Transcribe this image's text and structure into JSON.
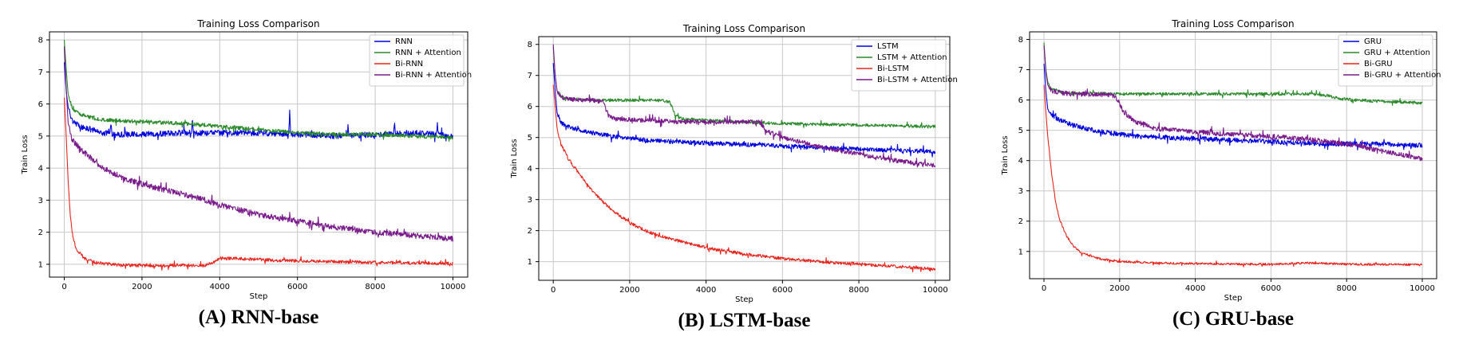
{
  "chart_data": [
    {
      "type": "line",
      "title": "Training Loss Comparison",
      "caption": "(A) RNN-base",
      "xlabel": "Step",
      "ylabel": "Train Loss",
      "xlim": [
        -380,
        10380
      ],
      "ylim": [
        0.6,
        8.25
      ],
      "xticks": [
        0,
        2000,
        4000,
        6000,
        8000,
        10000
      ],
      "yticks": [
        1,
        2,
        3,
        4,
        5,
        6,
        7,
        8
      ],
      "grid": true,
      "legend_position": "top-right",
      "series": [
        {
          "name": "RNN",
          "color": "#0000dd",
          "points": [
            [
              0,
              7.3
            ],
            [
              50,
              6.4
            ],
            [
              100,
              5.9
            ],
            [
              200,
              5.5
            ],
            [
              400,
              5.3
            ],
            [
              700,
              5.2
            ],
            [
              1000,
              5.1
            ],
            [
              1500,
              5.05
            ],
            [
              2000,
              5.05
            ],
            [
              3000,
              5.1
            ],
            [
              4000,
              5.1
            ],
            [
              5000,
              5.1
            ],
            [
              6000,
              5.05
            ],
            [
              7000,
              5.0
            ],
            [
              8000,
              5.05
            ],
            [
              9000,
              5.1
            ],
            [
              10000,
              5.0
            ]
          ],
          "noise": 0.09,
          "spikes": [
            [
              1200,
              0.35
            ],
            [
              3300,
              0.45
            ],
            [
              5800,
              0.7
            ],
            [
              7300,
              0.3
            ],
            [
              8500,
              0.35
            ],
            [
              9600,
              0.3
            ]
          ]
        },
        {
          "name": "RNN + Attention",
          "color": "#2a8a2a",
          "points": [
            [
              0,
              8.0
            ],
            [
              50,
              7.1
            ],
            [
              100,
              6.3
            ],
            [
              200,
              5.9
            ],
            [
              300,
              5.75
            ],
            [
              600,
              5.6
            ],
            [
              1000,
              5.5
            ],
            [
              2000,
              5.45
            ],
            [
              3000,
              5.4
            ],
            [
              4000,
              5.3
            ],
            [
              5000,
              5.2
            ],
            [
              6000,
              5.1
            ],
            [
              7000,
              5.05
            ],
            [
              8000,
              5.05
            ],
            [
              9000,
              5.0
            ],
            [
              10000,
              4.95
            ]
          ],
          "noise": 0.06
        },
        {
          "name": "Bi-RNN",
          "color": "#e8231b",
          "points": [
            [
              0,
              6.2
            ],
            [
              50,
              5.0
            ],
            [
              100,
              3.6
            ],
            [
              150,
              2.6
            ],
            [
              200,
              2.0
            ],
            [
              300,
              1.5
            ],
            [
              500,
              1.2
            ],
            [
              800,
              1.05
            ],
            [
              1500,
              0.97
            ],
            [
              2500,
              0.95
            ],
            [
              3000,
              0.98
            ],
            [
              3600,
              0.95
            ],
            [
              3800,
              1.05
            ],
            [
              4000,
              1.18
            ],
            [
              4500,
              1.18
            ],
            [
              5500,
              1.12
            ],
            [
              7000,
              1.08
            ],
            [
              8500,
              1.05
            ],
            [
              10000,
              1.02
            ]
          ],
          "noise": 0.05
        },
        {
          "name": "Bi-RNN + Attention",
          "color": "#7a1a8c",
          "points": [
            [
              0,
              7.8
            ],
            [
              50,
              6.5
            ],
            [
              100,
              5.4
            ],
            [
              200,
              4.9
            ],
            [
              400,
              4.6
            ],
            [
              700,
              4.3
            ],
            [
              1000,
              4.0
            ],
            [
              1500,
              3.7
            ],
            [
              2000,
              3.5
            ],
            [
              2500,
              3.35
            ],
            [
              3000,
              3.2
            ],
            [
              3500,
              3.05
            ],
            [
              4000,
              2.85
            ],
            [
              5000,
              2.55
            ],
            [
              6000,
              2.35
            ],
            [
              7000,
              2.15
            ],
            [
              8000,
              2.0
            ],
            [
              9000,
              1.9
            ],
            [
              10000,
              1.8
            ]
          ],
          "noise": 0.09
        }
      ]
    },
    {
      "type": "line",
      "title": "Training Loss Comparison",
      "caption": "(B) LSTM-base",
      "xlabel": "Step",
      "ylabel": "Train Loss",
      "xlim": [
        -380,
        10380
      ],
      "ylim": [
        0.4,
        8.25
      ],
      "xticks": [
        0,
        2000,
        4000,
        6000,
        8000,
        10000
      ],
      "yticks": [
        1,
        2,
        3,
        4,
        5,
        6,
        7,
        8
      ],
      "grid": true,
      "legend_position": "top-right",
      "series": [
        {
          "name": "LSTM",
          "color": "#0000dd",
          "points": [
            [
              0,
              7.4
            ],
            [
              50,
              6.5
            ],
            [
              100,
              5.8
            ],
            [
              200,
              5.5
            ],
            [
              400,
              5.35
            ],
            [
              800,
              5.2
            ],
            [
              1500,
              5.05
            ],
            [
              2500,
              4.9
            ],
            [
              3500,
              4.85
            ],
            [
              4500,
              4.8
            ],
            [
              5500,
              4.75
            ],
            [
              6500,
              4.7
            ],
            [
              7500,
              4.65
            ],
            [
              8500,
              4.6
            ],
            [
              10000,
              4.55
            ]
          ],
          "noise": 0.07
        },
        {
          "name": "LSTM + Attention",
          "color": "#2a8a2a",
          "points": [
            [
              0,
              7.9
            ],
            [
              50,
              7.0
            ],
            [
              100,
              6.5
            ],
            [
              200,
              6.3
            ],
            [
              600,
              6.25
            ],
            [
              1200,
              6.2
            ],
            [
              2000,
              6.2
            ],
            [
              2800,
              6.2
            ],
            [
              3050,
              6.15
            ],
            [
              3200,
              5.7
            ],
            [
              3400,
              5.6
            ],
            [
              4000,
              5.55
            ],
            [
              5000,
              5.5
            ],
            [
              6000,
              5.45
            ],
            [
              7000,
              5.42
            ],
            [
              8000,
              5.4
            ],
            [
              9000,
              5.38
            ],
            [
              10000,
              5.35
            ]
          ],
          "noise": 0.05
        },
        {
          "name": "Bi-LSTM",
          "color": "#e8231b",
          "points": [
            [
              0,
              6.7
            ],
            [
              50,
              6.0
            ],
            [
              100,
              5.3
            ],
            [
              200,
              4.8
            ],
            [
              400,
              4.3
            ],
            [
              700,
              3.8
            ],
            [
              1000,
              3.3
            ],
            [
              1500,
              2.7
            ],
            [
              2000,
              2.25
            ],
            [
              2500,
              1.95
            ],
            [
              3000,
              1.75
            ],
            [
              4000,
              1.45
            ],
            [
              5000,
              1.25
            ],
            [
              6000,
              1.1
            ],
            [
              7000,
              1.0
            ],
            [
              8000,
              0.92
            ],
            [
              9000,
              0.85
            ],
            [
              10000,
              0.75
            ]
          ],
          "noise": 0.05
        },
        {
          "name": "Bi-LSTM + Attention",
          "color": "#7a1a8c",
          "points": [
            [
              0,
              8.0
            ],
            [
              50,
              7.0
            ],
            [
              100,
              6.5
            ],
            [
              200,
              6.3
            ],
            [
              500,
              6.22
            ],
            [
              1000,
              6.2
            ],
            [
              1300,
              6.15
            ],
            [
              1450,
              5.7
            ],
            [
              1600,
              5.6
            ],
            [
              2500,
              5.55
            ],
            [
              3500,
              5.5
            ],
            [
              4500,
              5.5
            ],
            [
              5400,
              5.5
            ],
            [
              5600,
              5.2
            ],
            [
              6000,
              5.0
            ],
            [
              7000,
              4.7
            ],
            [
              8000,
              4.45
            ],
            [
              9000,
              4.25
            ],
            [
              10000,
              4.1
            ]
          ],
          "noise": 0.07
        }
      ]
    },
    {
      "type": "line",
      "title": "Training Loss Comparison",
      "caption": "(C) GRU-base",
      "xlabel": "Step",
      "ylabel": "Train Loss",
      "xlim": [
        -380,
        10380
      ],
      "ylim": [
        0.1,
        8.25
      ],
      "xticks": [
        0,
        2000,
        4000,
        6000,
        8000,
        10000
      ],
      "yticks": [
        1,
        2,
        3,
        4,
        5,
        6,
        7,
        8
      ],
      "grid": true,
      "legend_position": "top-right",
      "series": [
        {
          "name": "GRU",
          "color": "#0000dd",
          "points": [
            [
              0,
              7.2
            ],
            [
              50,
              6.3
            ],
            [
              100,
              5.7
            ],
            [
              200,
              5.5
            ],
            [
              400,
              5.35
            ],
            [
              800,
              5.15
            ],
            [
              1500,
              4.95
            ],
            [
              2500,
              4.8
            ],
            [
              3500,
              4.75
            ],
            [
              4500,
              4.7
            ],
            [
              5500,
              4.65
            ],
            [
              6500,
              4.6
            ],
            [
              7500,
              4.55
            ],
            [
              8500,
              4.55
            ],
            [
              10000,
              4.5
            ]
          ],
          "noise": 0.08
        },
        {
          "name": "GRU + Attention",
          "color": "#2a8a2a",
          "points": [
            [
              0,
              7.9
            ],
            [
              50,
              7.0
            ],
            [
              100,
              6.6
            ],
            [
              200,
              6.35
            ],
            [
              500,
              6.25
            ],
            [
              1000,
              6.22
            ],
            [
              2000,
              6.2
            ],
            [
              3000,
              6.2
            ],
            [
              4000,
              6.2
            ],
            [
              5000,
              6.2
            ],
            [
              6000,
              6.2
            ],
            [
              7000,
              6.2
            ],
            [
              7500,
              6.15
            ],
            [
              7800,
              6.05
            ],
            [
              8200,
              6.0
            ],
            [
              9000,
              5.95
            ],
            [
              10000,
              5.9
            ]
          ],
          "noise": 0.05
        },
        {
          "name": "Bi-GRU",
          "color": "#e8231b",
          "points": [
            [
              0,
              6.5
            ],
            [
              50,
              5.6
            ],
            [
              100,
              4.8
            ],
            [
              200,
              3.6
            ],
            [
              300,
              2.7
            ],
            [
              400,
              2.1
            ],
            [
              600,
              1.5
            ],
            [
              800,
              1.15
            ],
            [
              1000,
              0.95
            ],
            [
              1500,
              0.75
            ],
            [
              2000,
              0.67
            ],
            [
              3000,
              0.62
            ],
            [
              4000,
              0.6
            ],
            [
              5000,
              0.58
            ],
            [
              6000,
              0.58
            ],
            [
              7000,
              0.62
            ],
            [
              8000,
              0.58
            ],
            [
              9000,
              0.57
            ],
            [
              10000,
              0.56
            ]
          ],
          "noise": 0.035
        },
        {
          "name": "Bi-GRU + Attention",
          "color": "#7a1a8c",
          "points": [
            [
              0,
              7.8
            ],
            [
              50,
              6.9
            ],
            [
              100,
              6.5
            ],
            [
              200,
              6.3
            ],
            [
              500,
              6.22
            ],
            [
              1000,
              6.2
            ],
            [
              1800,
              6.18
            ],
            [
              1950,
              6.0
            ],
            [
              2100,
              5.6
            ],
            [
              2400,
              5.3
            ],
            [
              3000,
              5.05
            ],
            [
              4000,
              4.95
            ],
            [
              5000,
              4.85
            ],
            [
              6000,
              4.8
            ],
            [
              7000,
              4.7
            ],
            [
              8000,
              4.55
            ],
            [
              9000,
              4.3
            ],
            [
              10000,
              4.05
            ]
          ],
          "noise": 0.08
        }
      ]
    }
  ]
}
